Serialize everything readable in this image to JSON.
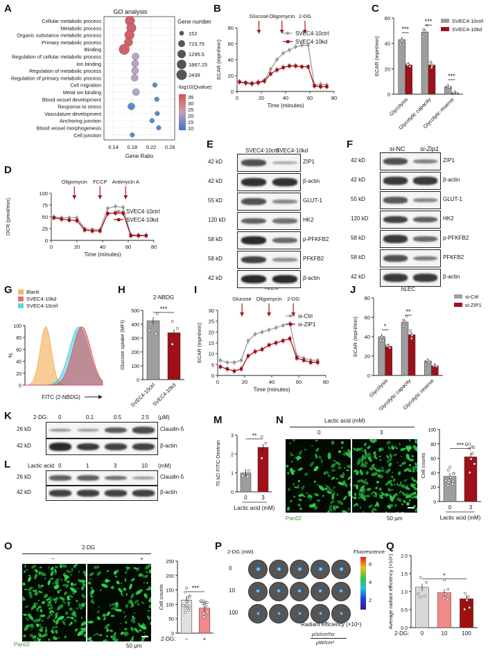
{
  "panels": [
    "A",
    "B",
    "C",
    "D",
    "E",
    "F",
    "G",
    "H",
    "I",
    "J",
    "K",
    "L",
    "M",
    "N",
    "O",
    "P",
    "Q"
  ],
  "A": {
    "title": "GO analysis",
    "terms": [
      {
        "term": "Cellular metabolic process",
        "color": "#b5213b",
        "x": 0.175,
        "size": 1867.25,
        "q": 33
      },
      {
        "term": "Metabolic process",
        "color": "#b5213b",
        "x": 0.178,
        "size": 1867.25,
        "q": 32
      },
      {
        "term": "Organic substance metabolic process",
        "color": "#b5213b",
        "x": 0.174,
        "size": 1867.25,
        "q": 31
      },
      {
        "term": "Primary metabolic process",
        "color": "#b5213b",
        "x": 0.172,
        "size": 1295.5,
        "q": 30
      },
      {
        "term": "Binding",
        "color": "#111",
        "x": 0.163,
        "size": 2439,
        "q": 28
      },
      {
        "term": "Regulation of cellular metabolic process",
        "color": "#111",
        "x": 0.187,
        "size": 723.75,
        "q": 22
      },
      {
        "term": "Ion binding",
        "color": "#2e8b3a",
        "x": 0.186,
        "size": 723.75,
        "q": 21
      },
      {
        "term": "Regulation of metabolic process",
        "color": "#111",
        "x": 0.186,
        "size": 723.75,
        "q": 20
      },
      {
        "term": "Regulation of primary metabolic process",
        "color": "#111",
        "x": 0.185,
        "size": 723.75,
        "q": 19
      },
      {
        "term": "Cell migration",
        "color": "#111",
        "x": 0.228,
        "size": 152,
        "q": 12
      },
      {
        "term": "Metal ion binding",
        "color": "#2e8b3a",
        "x": 0.188,
        "size": 723.75,
        "q": 18
      },
      {
        "term": "Blood vessel development",
        "color": "#111",
        "x": 0.232,
        "size": 152,
        "q": 11
      },
      {
        "term": "Response to stress",
        "color": "#111",
        "x": 0.178,
        "size": 723.75,
        "q": 9
      },
      {
        "term": "Vasculature development",
        "color": "#111",
        "x": 0.233,
        "size": 152,
        "q": 11
      },
      {
        "term": "Anchoring junction",
        "color": "#1aa0c8",
        "x": 0.222,
        "size": 152,
        "q": 12
      },
      {
        "term": "Blood vessel morphogenesis",
        "color": "#111",
        "x": 0.236,
        "size": 152,
        "q": 10
      },
      {
        "term": "Cell junction",
        "color": "#1aa0c8",
        "x": 0.18,
        "size": 152,
        "q": 15
      }
    ],
    "xlabel": "Gene Ratio",
    "xticks": [
      "0.14",
      "0.18",
      "0.22",
      "0.26"
    ],
    "size_legend_title": "Gene number",
    "size_legend": [
      "152",
      "723.75",
      "1295.5",
      "1867.25",
      "2439"
    ],
    "color_legend_title": "-log10(Qvalue)",
    "color_legend": [
      "35",
      "30",
      "25",
      "20",
      "15",
      "10"
    ]
  },
  "B": {
    "ylabel": "ECAR (mpH/min)",
    "xlabel": "Time (minutes)",
    "yticks": [
      "0",
      "20",
      "40",
      "60",
      "80"
    ],
    "xticks": [
      "0",
      "20",
      "40",
      "60",
      "80"
    ],
    "injections": [
      "Glucose",
      "Oligomycin",
      "2-DG"
    ],
    "legend_ctrl": "SVEC4-10ctrl",
    "legend_kd": "SVEC4-10kd",
    "ctrl": [
      12,
      10,
      9,
      12,
      14,
      28,
      40,
      48,
      52,
      56,
      58,
      58,
      8,
      9,
      8
    ],
    "kd": [
      12,
      11,
      10,
      11,
      13,
      22,
      27,
      30,
      32,
      32,
      31,
      31,
      7,
      6,
      6
    ]
  },
  "C": {
    "ylabel": "ECAR (mpH/min)",
    "yticks": [
      "0",
      "20",
      "40",
      "60"
    ],
    "categories": [
      "Glycolysis",
      "Glycolytic capacity",
      "Glycolytic reserve"
    ],
    "ctrl": [
      43,
      49,
      6
    ],
    "kd": [
      23,
      23,
      1
    ],
    "sig": [
      "***",
      "***",
      "***"
    ],
    "legend_ctrl": "SVEC4-10ctrl",
    "legend_kd": "SVEC4-10kd"
  },
  "D": {
    "ylabel": "OCR (pmol/min)",
    "xlabel": "Time (minutes)",
    "yticks": [
      "0",
      "25",
      "50",
      "75",
      "100"
    ],
    "xticks": [
      "0",
      "20",
      "40",
      "60",
      "80"
    ],
    "injections": [
      "Oligomycin",
      "FCCP",
      "Antimycin A"
    ],
    "legend_ctrl": "SVEC4-10ctrl",
    "legend_kd": "SVEC4-10kd",
    "ctrl": [
      50,
      48,
      48,
      48,
      25,
      23,
      23,
      68,
      72,
      70,
      12,
      11,
      11
    ],
    "kd": [
      48,
      45,
      43,
      42,
      22,
      20,
      20,
      57,
      58,
      58,
      10,
      10,
      10
    ]
  },
  "E": {
    "header_left": "SVEC4-10ctrl",
    "header_right": "SVEC4-10kd",
    "rows": [
      {
        "kd": "42 kD",
        "name": "ZIP1"
      },
      {
        "kd": "42 kD",
        "name": "β-actin"
      },
      {
        "kd": "55 kD",
        "name": "GLUT-1"
      },
      {
        "kd": "120 kD",
        "name": "HK2"
      },
      {
        "kd": "58 kD",
        "name": "p-PFKFB2"
      },
      {
        "kd": "58 kD",
        "name": "PFKFB2"
      },
      {
        "kd": "42 kD",
        "name": "β-actin"
      }
    ]
  },
  "F": {
    "header_left": "si-NC",
    "header_right": "si-Zip1",
    "rows": [
      {
        "kd": "42 kD",
        "name": "ZIP1"
      },
      {
        "kd": "42 kD",
        "name": "β-actin"
      },
      {
        "kd": "55 kD",
        "name": "GLUT-1"
      },
      {
        "kd": "120 kD",
        "name": "HK2"
      },
      {
        "kd": "58 kD",
        "name": "p-PFKFB2"
      },
      {
        "kd": "58 kD",
        "name": "PFKFB2"
      },
      {
        "kd": "42 kD",
        "name": "β-actin"
      }
    ]
  },
  "G": {
    "legend": [
      "Blank",
      "SVEC4-10kd",
      "SVEC4-10ctrl"
    ],
    "colors": [
      "#f4a340",
      "#e04850",
      "#39c6e0"
    ],
    "ylabel": "%",
    "yticks": [
      "0",
      "20",
      "40",
      "60",
      "80",
      "100"
    ],
    "xlabel": "FITC (2-NBDG)"
  },
  "H": {
    "title": "2-NBDG",
    "ylabel": "Glucose uptake (MFI)",
    "yticks": [
      "0",
      "100",
      "200",
      "300",
      "400",
      "500"
    ],
    "categories": [
      "SVEC4-10ctrl",
      "SVEC4-10kd"
    ],
    "values": [
      425,
      338
    ],
    "sig": "***"
  },
  "I": {
    "title": "hLEC",
    "ylabel": "ECAR (mpH/min)",
    "xlabel": "Time (minutes)",
    "yticks": [
      "0",
      "5",
      "10",
      "15",
      "20",
      "25",
      "30"
    ],
    "xticks": [
      "0",
      "20",
      "40",
      "60",
      "80"
    ],
    "injections": [
      "Glucose",
      "Oligomycin",
      "2-DG"
    ],
    "legend_ctrl": "si-Ctrl",
    "legend_kd": "si-ZIP1",
    "ctrl": [
      7,
      6,
      6,
      7,
      16,
      19,
      20,
      21,
      22,
      23,
      24,
      9,
      8,
      7,
      7
    ],
    "kd": [
      4,
      3,
      2,
      3,
      9,
      11,
      12,
      14,
      15,
      16,
      17,
      8,
      7,
      6,
      6
    ]
  },
  "J": {
    "title": "hLEC",
    "ylabel": "ECAR (mpH/min)",
    "yticks": [
      "0",
      "20",
      "40",
      "60",
      "80"
    ],
    "categories": [
      "Glycolysis",
      "Glycolytic capacity",
      "Glycolytic reserve"
    ],
    "ctrl": [
      40,
      55,
      15
    ],
    "kd": [
      30,
      42,
      10
    ],
    "sig": [
      "*",
      "**",
      ""
    ],
    "legend_ctrl": "si-Ctrl",
    "legend_kd": "si-ZIP1"
  },
  "K": {
    "header_label": "2-DG:",
    "doses": [
      "0",
      "0.1",
      "0.5",
      "2.5"
    ],
    "unit": "(μM)",
    "rows": [
      {
        "kd": "26 kD",
        "name": "Claudin-5"
      },
      {
        "kd": "42 kD",
        "name": "β-actin"
      }
    ]
  },
  "L": {
    "header_label": "Lactic acid:",
    "doses": [
      "0",
      "1",
      "3",
      "10"
    ],
    "unit": "(mM)",
    "rows": [
      {
        "kd": "26 kD",
        "name": "Claudin-5"
      },
      {
        "kd": "42 kD",
        "name": "β-actin"
      }
    ]
  },
  "M": {
    "ylabel": "70 kD FITC-Dextran",
    "yticks": [
      "0",
      "1",
      "2",
      "3"
    ],
    "categories": [
      "0",
      "3"
    ],
    "values": [
      1.0,
      2.35
    ],
    "xlabel": "Lactic acid (mM)",
    "sig": "**"
  },
  "N": {
    "header": "Lactic acid (mM)",
    "conds": [
      "0",
      "3"
    ],
    "stain": "Pan02",
    "scale": "50 μm",
    "ylabel": "Cell counts",
    "yticks": [
      "0",
      "20",
      "40",
      "60",
      "80",
      "100"
    ],
    "categories": [
      "0",
      "3"
    ],
    "values": [
      35,
      62
    ],
    "xlabel": "Lactic acid (mM)",
    "sig": "***"
  },
  "O": {
    "header": "2-DG",
    "conds": [
      "–",
      "+"
    ],
    "stain": "Pan02",
    "scale": "50 μm",
    "ylabel": "Cell counts",
    "yticks": [
      "0",
      "50",
      "100",
      "150",
      "200",
      "250"
    ],
    "categories": [
      "–",
      "+"
    ],
    "values": [
      115,
      87
    ],
    "xlabel": "2-DG:",
    "sig": "***"
  },
  "P": {
    "row_header": "2-DG (mM)",
    "rows": [
      "0",
      "10",
      "100"
    ],
    "cbar_title": "Fluorescence",
    "cbar_ticks": [
      "6",
      "4",
      "2"
    ],
    "xlabel": "Radiant efficiency (×10⁶)",
    "unit_top": "p/s/cm²/sr",
    "unit_bottom": "μW/cm²"
  },
  "Q": {
    "ylabel": "Average radiant efficiency (×10⁶)",
    "yticks": [
      "0.0",
      "0.5",
      "1.0",
      "1.5",
      "2.0"
    ],
    "categories": [
      "0",
      "10",
      "100"
    ],
    "values": [
      1.12,
      0.97,
      0.8
    ],
    "colors": [
      "#d8d8d8",
      "#f08a8a",
      "#a01010"
    ],
    "xlabel": "2-DG:",
    "sig": "*"
  }
}
